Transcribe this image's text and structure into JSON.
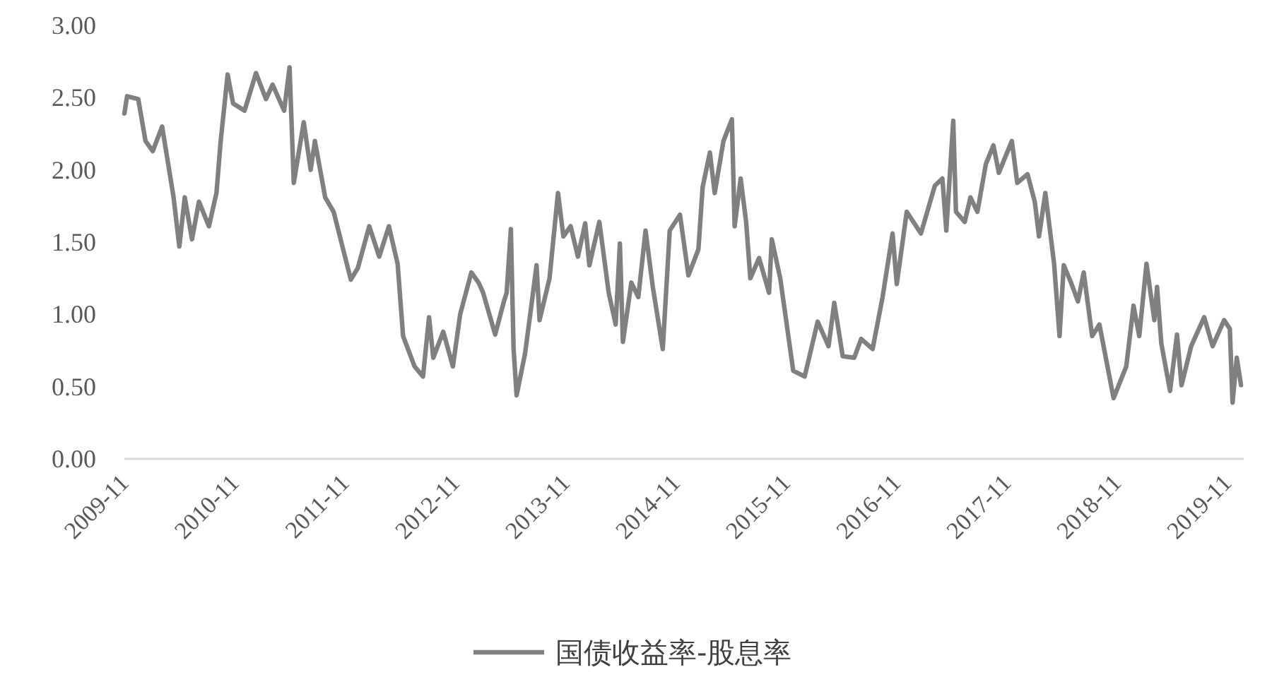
{
  "chart_data": {
    "type": "line",
    "legend": "bottom",
    "grid": false,
    "xlim": [
      "2009-11-01",
      "2019-12-26"
    ],
    "xticks": [
      "2009-11",
      "2010-11",
      "2011-11",
      "2012-11",
      "2013-11",
      "2014-11",
      "2015-11",
      "2016-11",
      "2017-11",
      "2018-11",
      "2019-11"
    ],
    "ylim": [
      0,
      3
    ],
    "yticks": [
      {
        "value": 0,
        "label": "0.00"
      },
      {
        "value": 0.5,
        "label": "0.50"
      },
      {
        "value": 1,
        "label": "1.00"
      },
      {
        "value": 1.5,
        "label": "1.50"
      },
      {
        "value": 2,
        "label": "2.00"
      },
      {
        "value": 2.5,
        "label": "2.50"
      },
      {
        "value": 3,
        "label": "3.00"
      }
    ],
    "x": [
      "2009-11-01",
      "2009-11-10",
      "2009-12-17",
      "2010-01-10",
      "2010-02-03",
      "2010-03-06",
      "2010-04-13",
      "2010-05-02",
      "2010-05-20",
      "2010-06-13",
      "2010-07-06",
      "2010-08-08",
      "2010-09-02",
      "2010-09-16",
      "2010-10-09",
      "2010-10-27",
      "2010-12-04",
      "2011-01-11",
      "2011-02-13",
      "2011-03-07",
      "2011-04-14",
      "2011-05-02",
      "2011-05-16",
      "2011-06-18",
      "2011-07-11",
      "2011-07-25",
      "2011-08-28",
      "2011-09-25",
      "2011-11-21",
      "2011-12-14",
      "2012-01-21",
      "2012-02-23",
      "2012-03-26",
      "2012-04-24",
      "2012-05-12",
      "2012-06-19",
      "2012-07-17",
      "2012-08-06",
      "2012-08-20",
      "2012-09-22",
      "2012-10-24",
      "2012-11-17",
      "2012-12-24",
      "2013-01-17",
      "2013-02-01",
      "2013-03-13",
      "2013-04-11",
      "2013-04-20",
      "2013-05-04",
      "2013-05-13",
      "2013-05-23",
      "2013-06-20",
      "2013-07-09",
      "2013-07-28",
      "2013-08-07",
      "2013-09-09",
      "2013-10-07",
      "2013-10-25",
      "2013-11-18",
      "2013-12-12",
      "2014-01-05",
      "2014-01-19",
      "2014-02-21",
      "2014-03-24",
      "2014-04-16",
      "2014-04-30",
      "2014-05-10",
      "2014-06-07",
      "2014-06-30",
      "2014-07-24",
      "2014-08-17",
      "2014-09-19",
      "2014-10-12",
      "2014-11-15",
      "2014-12-13",
      "2015-01-15",
      "2015-01-29",
      "2015-02-22",
      "2015-03-10",
      "2015-04-08",
      "2015-05-06",
      "2015-05-15",
      "2015-06-04",
      "2015-06-22",
      "2015-07-06",
      "2015-08-04",
      "2015-09-06",
      "2015-09-15",
      "2015-10-13",
      "2015-11-25",
      "2016-01-02",
      "2016-02-14",
      "2016-03-21",
      "2016-04-09",
      "2016-05-07",
      "2016-06-14",
      "2016-07-07",
      "2016-08-14",
      "2016-09-16",
      "2016-10-19",
      "2016-11-02",
      "2016-12-05",
      "2017-01-21",
      "2017-03-08",
      "2017-04-02",
      "2017-04-15",
      "2017-05-08",
      "2017-05-17",
      "2017-06-15",
      "2017-07-04",
      "2017-07-27",
      "2017-08-24",
      "2017-09-18",
      "2017-10-06",
      "2017-11-18",
      "2017-12-06",
      "2018-01-09",
      "2018-02-02",
      "2018-02-16",
      "2018-03-09",
      "2018-04-07",
      "2018-04-25",
      "2018-05-09",
      "2018-06-02",
      "2018-06-25",
      "2018-07-14",
      "2018-08-11",
      "2018-09-04",
      "2018-10-21",
      "2018-12-02",
      "2018-12-26",
      "2019-01-14",
      "2019-02-07",
      "2019-03-05",
      "2019-03-14",
      "2019-03-28",
      "2019-04-26",
      "2019-05-19",
      "2019-06-03",
      "2019-07-05",
      "2019-08-17",
      "2019-09-14",
      "2019-10-22",
      "2019-11-10",
      "2019-11-19",
      "2019-12-03",
      "2019-12-17"
    ],
    "series": [
      {
        "name": "国债收益率-股息率",
        "color": "#808080",
        "values": [
          2.39,
          2.51,
          2.49,
          2.2,
          2.13,
          2.3,
          1.81,
          1.47,
          1.81,
          1.52,
          1.78,
          1.61,
          1.84,
          2.2,
          2.66,
          2.46,
          2.41,
          2.67,
          2.49,
          2.59,
          2.41,
          2.71,
          1.91,
          2.33,
          2.0,
          2.2,
          1.81,
          1.71,
          1.24,
          1.32,
          1.61,
          1.4,
          1.61,
          1.35,
          0.85,
          0.64,
          0.57,
          0.98,
          0.7,
          0.88,
          0.64,
          1.0,
          1.29,
          1.22,
          1.15,
          0.86,
          1.09,
          1.15,
          1.59,
          0.76,
          0.44,
          0.73,
          1.03,
          1.34,
          0.96,
          1.25,
          1.84,
          1.54,
          1.61,
          1.4,
          1.63,
          1.34,
          1.64,
          1.15,
          0.93,
          1.49,
          0.81,
          1.22,
          1.12,
          1.58,
          1.19,
          0.76,
          1.58,
          1.69,
          1.27,
          1.45,
          1.88,
          2.12,
          1.84,
          2.2,
          2.35,
          1.61,
          1.94,
          1.64,
          1.25,
          1.39,
          1.15,
          1.52,
          1.25,
          0.61,
          0.57,
          0.95,
          0.78,
          1.08,
          0.71,
          0.7,
          0.83,
          0.76,
          1.12,
          1.56,
          1.21,
          1.71,
          1.56,
          1.89,
          1.94,
          1.58,
          2.34,
          1.71,
          1.64,
          1.81,
          1.71,
          2.04,
          2.17,
          1.98,
          2.2,
          1.91,
          1.97,
          1.78,
          1.54,
          1.84,
          1.35,
          0.85,
          1.34,
          1.22,
          1.09,
          1.29,
          0.85,
          0.93,
          0.42,
          0.64,
          1.06,
          0.85,
          1.35,
          0.96,
          1.19,
          0.8,
          0.47,
          0.86,
          0.51,
          0.78,
          0.98,
          0.78,
          0.96,
          0.9,
          0.39,
          0.7,
          0.51
        ]
      }
    ]
  }
}
